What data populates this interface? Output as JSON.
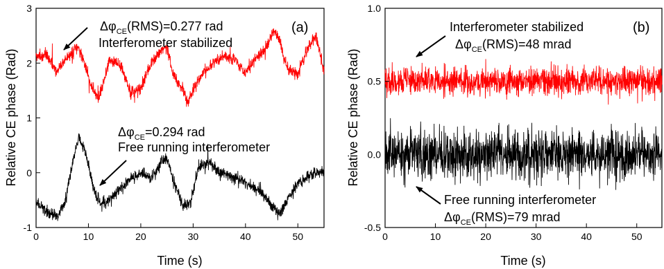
{
  "chart_data": [
    {
      "type": "line",
      "panel_label": "(a)",
      "xlabel": "Time (s)",
      "ylabel": "Relative CE phase  (Rad)",
      "xlim": [
        0,
        55
      ],
      "ylim": [
        -1,
        3
      ],
      "x_ticks": [
        "0",
        "10",
        "20",
        "30",
        "40",
        "50"
      ],
      "y_ticks": [
        "-1",
        "0",
        "1",
        "2",
        "3"
      ],
      "series": [
        {
          "color": "#ff0000",
          "x": [
            0,
            2,
            4,
            6,
            8,
            9.5,
            10.5,
            12,
            14,
            16,
            18,
            20,
            22,
            24,
            25,
            26,
            28,
            29,
            30,
            32,
            34,
            36,
            38,
            40,
            42,
            44,
            45.5,
            46.5,
            48,
            50,
            52,
            53.5,
            55
          ],
          "y": [
            2.1,
            2.15,
            1.85,
            2.1,
            2.3,
            1.95,
            1.55,
            1.35,
            2.05,
            2.0,
            1.45,
            1.55,
            2.0,
            2.25,
            2.3,
            1.85,
            1.5,
            1.3,
            1.5,
            1.85,
            2.0,
            2.15,
            2.05,
            1.8,
            2.1,
            2.3,
            2.6,
            2.4,
            1.9,
            1.8,
            2.3,
            2.5,
            1.85
          ]
        },
        {
          "color": "#000000",
          "x": [
            0,
            2,
            4,
            5.5,
            7,
            8.2,
            9.5,
            11,
            12.5,
            14,
            16,
            18,
            20,
            22,
            24,
            25,
            26.5,
            28,
            29.5,
            31,
            33,
            35,
            37,
            39,
            41,
            43,
            45,
            46.5,
            48,
            50,
            52,
            54,
            55
          ],
          "y": [
            -0.55,
            -0.7,
            -0.8,
            -0.55,
            0.2,
            0.65,
            0.35,
            -0.3,
            -0.6,
            -0.5,
            -0.3,
            -0.1,
            0.0,
            -0.1,
            0.2,
            0.25,
            -0.2,
            -0.6,
            -0.55,
            0.1,
            0.2,
            0.0,
            -0.05,
            -0.15,
            -0.25,
            -0.35,
            -0.6,
            -0.75,
            -0.5,
            -0.2,
            -0.05,
            0.0,
            0.05
          ]
        }
      ],
      "annotations": [
        {
          "id": "rms_red",
          "parts": [
            "Δφ",
            "CE",
            "(RMS)=0.277 rad"
          ]
        },
        {
          "id": "stab",
          "text": "Interferometer stabilized"
        },
        {
          "id": "delta_black",
          "parts": [
            "Δφ",
            "CE",
            "=0.294 rad"
          ]
        },
        {
          "id": "free",
          "text": "Free running interferometer"
        }
      ]
    },
    {
      "type": "line",
      "panel_label": "(b)",
      "xlabel": "Time (s)",
      "ylabel": "Relative CE phase (Rad)",
      "xlim": [
        0,
        55
      ],
      "ylim": [
        -0.5,
        1.0
      ],
      "x_ticks": [
        "0",
        "10",
        "20",
        "30",
        "40",
        "50"
      ],
      "y_ticks": [
        "-0.5",
        "0.0",
        "0.5",
        "1.0"
      ],
      "series": [
        {
          "color": "#ff0000",
          "x": [
            0,
            55
          ],
          "y": [
            0.5,
            0.5
          ],
          "noise_rms": 0.048
        },
        {
          "color": "#000000",
          "x": [
            0,
            55
          ],
          "y": [
            0.0,
            0.0
          ],
          "noise_rms": 0.079
        }
      ],
      "annotations": [
        {
          "id": "stab",
          "text": "Interferometer stabilized"
        },
        {
          "id": "rms_red",
          "parts": [
            "Δφ",
            "CE",
            "(RMS)=48 mrad"
          ]
        },
        {
          "id": "free",
          "text": "Free running interferometer"
        },
        {
          "id": "rms_black",
          "parts": [
            "Δφ",
            "CE",
            "(RMS)=79 mrad"
          ]
        }
      ]
    }
  ]
}
